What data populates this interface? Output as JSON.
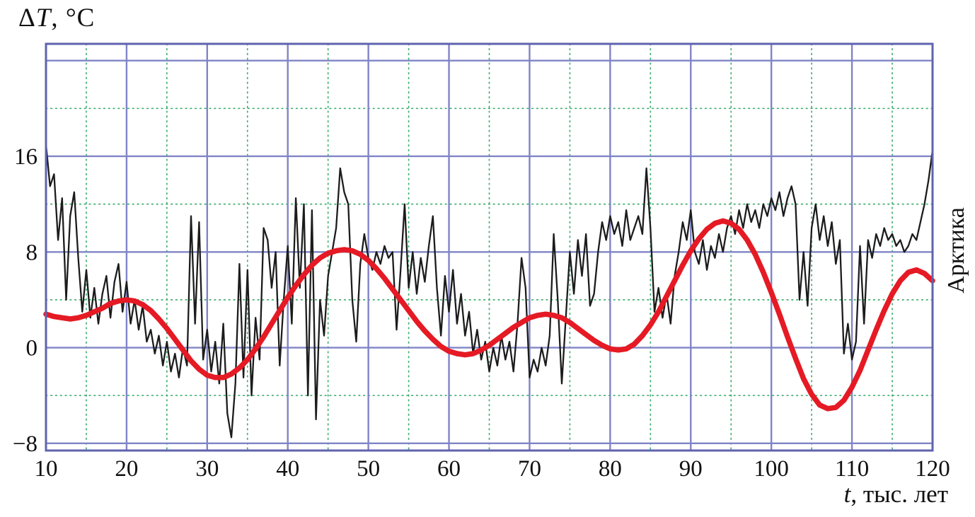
{
  "labels": {
    "y_delta": "Δ",
    "y_var": "T",
    "y_unit": ", °C",
    "x_var": "t",
    "x_unit": ", тыс. лет",
    "right": "Арктика"
  },
  "colors": {
    "major_grid": "#8084c6",
    "border": "#5f63ae",
    "minor_grid": "#3fae6e",
    "series_black": "#1c1c1c",
    "series_red": "#e51a24"
  },
  "chart_data": {
    "type": "line",
    "title": "",
    "xlabel": "t, тыс. лет",
    "ylabel": "ΔT, °C",
    "right_label": "Арктика",
    "xlim": [
      10,
      120
    ],
    "ylim": [
      -8.6,
      25.4
    ],
    "x_ticks": [
      10,
      20,
      30,
      40,
      50,
      60,
      70,
      80,
      90,
      100,
      110,
      120
    ],
    "x_tick_labels": [
      "10",
      "20",
      "30",
      "40",
      "50",
      "60",
      "70",
      "80",
      "90",
      "100",
      "110",
      "120"
    ],
    "y_ticks": [
      -8,
      0,
      8,
      16
    ],
    "y_tick_labels": [
      "−8",
      "0",
      "8",
      "16"
    ],
    "grid": {
      "major_x_step": 10,
      "minor_x_step": 5,
      "major_y_step": 8,
      "minor_y_step": 4,
      "legend": "none"
    },
    "series": [
      {
        "name": "arctic-temperature-record",
        "color_key": "series_black",
        "x_start": 10,
        "x_step": 0.5,
        "y": [
          17.0,
          13.5,
          14.5,
          9.0,
          12.5,
          4.0,
          11.0,
          13.0,
          7.5,
          3.0,
          6.5,
          2.5,
          5.0,
          2.0,
          4.5,
          6.0,
          2.5,
          5.5,
          7.0,
          3.0,
          5.5,
          2.0,
          4.0,
          1.5,
          3.5,
          0.5,
          1.5,
          -0.5,
          1.0,
          -1.5,
          0.5,
          -2.0,
          -0.5,
          -2.5,
          0.0,
          -1.5,
          11.0,
          2.0,
          10.5,
          -1.0,
          1.5,
          -2.0,
          0.5,
          -3.0,
          2.0,
          -5.5,
          -7.5,
          -3.0,
          7.0,
          -2.5,
          6.5,
          -4.0,
          2.5,
          -1.0,
          10.0,
          9.0,
          5.0,
          8.0,
          -1.5,
          4.0,
          8.5,
          2.0,
          12.5,
          5.0,
          12.0,
          -4.0,
          11.5,
          -6.0,
          4.0,
          1.0,
          6.0,
          8.0,
          10.0,
          15.0,
          13.0,
          12.0,
          4.0,
          0.5,
          7.0,
          9.5,
          7.5,
          6.5,
          8.0,
          7.0,
          8.5,
          7.5,
          8.0,
          1.5,
          6.5,
          12.0,
          5.0,
          8.0,
          4.5,
          7.5,
          5.5,
          8.5,
          11.0,
          5.0,
          1.0,
          6.0,
          3.0,
          6.5,
          2.0,
          4.5,
          1.0,
          3.0,
          -0.5,
          1.5,
          -1.0,
          0.5,
          -2.0,
          0.0,
          -1.5,
          1.0,
          -1.0,
          0.5,
          -2.0,
          2.0,
          7.5,
          5.0,
          -2.5,
          -1.0,
          -2.0,
          0.0,
          -1.5,
          1.0,
          9.5,
          4.0,
          -3.0,
          2.5,
          8.0,
          4.5,
          9.0,
          6.0,
          9.5,
          3.5,
          4.5,
          8.0,
          10.5,
          9.0,
          11.0,
          9.5,
          10.5,
          8.5,
          11.5,
          9.0,
          10.0,
          11.0,
          9.5,
          15.0,
          10.0,
          3.0,
          5.0,
          2.5,
          4.5,
          2.0,
          6.0,
          8.0,
          10.5,
          9.0,
          11.5,
          8.0,
          7.0,
          9.0,
          6.5,
          8.5,
          7.5,
          9.5,
          8.0,
          10.0,
          11.0,
          9.5,
          11.5,
          10.0,
          12.0,
          10.5,
          11.5,
          10.0,
          12.0,
          11.0,
          12.5,
          11.5,
          13.0,
          11.0,
          12.5,
          13.5,
          12.0,
          4.0,
          8.0,
          3.5,
          10.0,
          12.0,
          9.0,
          11.0,
          8.5,
          10.5,
          7.0,
          9.0,
          -0.5,
          2.0,
          -1.0,
          0.5,
          8.5,
          2.0,
          9.0,
          7.5,
          9.5,
          8.5,
          10.0,
          9.0,
          9.5,
          8.5,
          9.0,
          8.0,
          8.5,
          9.5,
          9.0,
          10.5,
          12.0,
          14.0,
          16.5
        ]
      },
      {
        "name": "smoothed-oscillation",
        "color_key": "series_red",
        "x_start": 10,
        "x_step": 1,
        "y": [
          2.8,
          2.6,
          2.5,
          2.4,
          2.5,
          2.7,
          3.0,
          3.3,
          3.7,
          3.9,
          4.0,
          3.9,
          3.6,
          3.1,
          2.4,
          1.6,
          0.7,
          -0.2,
          -1.1,
          -1.8,
          -2.3,
          -2.5,
          -2.5,
          -2.2,
          -1.7,
          -1.0,
          -0.1,
          0.9,
          2.0,
          3.1,
          4.2,
          5.2,
          6.1,
          6.9,
          7.5,
          7.9,
          8.1,
          8.2,
          8.1,
          7.8,
          7.3,
          6.6,
          5.8,
          4.9,
          4.0,
          3.1,
          2.2,
          1.4,
          0.7,
          0.1,
          -0.3,
          -0.5,
          -0.6,
          -0.5,
          -0.2,
          0.2,
          0.7,
          1.2,
          1.7,
          2.1,
          2.5,
          2.7,
          2.8,
          2.7,
          2.5,
          2.1,
          1.6,
          1.1,
          0.6,
          0.2,
          -0.1,
          -0.2,
          -0.1,
          0.3,
          1.0,
          1.9,
          3.0,
          4.3,
          5.6,
          6.9,
          8.1,
          9.1,
          9.9,
          10.4,
          10.6,
          10.4,
          9.9,
          9.0,
          7.8,
          6.3,
          4.6,
          2.8,
          0.9,
          -0.9,
          -2.6,
          -3.9,
          -4.8,
          -5.1,
          -5.0,
          -4.4,
          -3.3,
          -1.9,
          -0.2,
          1.5,
          3.1,
          4.5,
          5.6,
          6.3,
          6.5,
          6.2,
          5.6
        ]
      }
    ]
  }
}
